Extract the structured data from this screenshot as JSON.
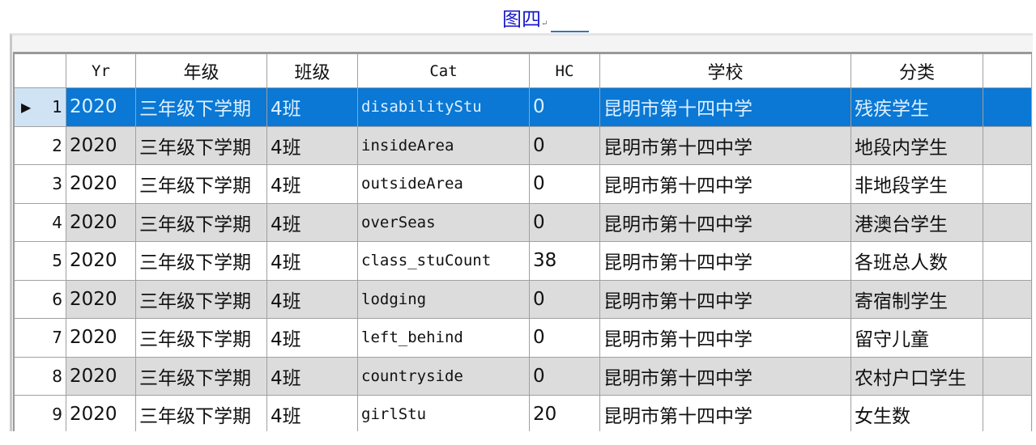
{
  "caption": {
    "text": "图四",
    "mark": "↵"
  },
  "columns": [
    "",
    "Yr",
    "年级",
    "班级",
    "Cat",
    "HC",
    "学校",
    "分类",
    ""
  ],
  "selected_row": 1,
  "colors": {
    "selection": "#0a78d4",
    "alt_row": "#dcdcdc"
  },
  "rows": [
    {
      "n": "1",
      "yr": "2020",
      "grade": "三年级下学期",
      "cls": "4班",
      "cat": "disabilityStu",
      "hc": "0",
      "school": "昆明市第十四中学",
      "type": "残疾学生"
    },
    {
      "n": "2",
      "yr": "2020",
      "grade": "三年级下学期",
      "cls": "4班",
      "cat": "insideArea",
      "hc": "0",
      "school": "昆明市第十四中学",
      "type": "地段内学生"
    },
    {
      "n": "3",
      "yr": "2020",
      "grade": "三年级下学期",
      "cls": "4班",
      "cat": "outsideArea",
      "hc": "0",
      "school": "昆明市第十四中学",
      "type": "非地段学生"
    },
    {
      "n": "4",
      "yr": "2020",
      "grade": "三年级下学期",
      "cls": "4班",
      "cat": "overSeas",
      "hc": "0",
      "school": "昆明市第十四中学",
      "type": "港澳台学生"
    },
    {
      "n": "5",
      "yr": "2020",
      "grade": "三年级下学期",
      "cls": "4班",
      "cat": "class_stuCount",
      "hc": "38",
      "school": "昆明市第十四中学",
      "type": "各班总人数"
    },
    {
      "n": "6",
      "yr": "2020",
      "grade": "三年级下学期",
      "cls": "4班",
      "cat": "lodging",
      "hc": "0",
      "school": "昆明市第十四中学",
      "type": "寄宿制学生"
    },
    {
      "n": "7",
      "yr": "2020",
      "grade": "三年级下学期",
      "cls": "4班",
      "cat": "left_behind",
      "hc": "0",
      "school": "昆明市第十四中学",
      "type": "留守儿童"
    },
    {
      "n": "8",
      "yr": "2020",
      "grade": "三年级下学期",
      "cls": "4班",
      "cat": "countryside",
      "hc": "0",
      "school": "昆明市第十四中学",
      "type": "农村户口学生"
    },
    {
      "n": "9",
      "yr": "2020",
      "grade": "三年级下学期",
      "cls": "4班",
      "cat": "girlStu",
      "hc": "20",
      "school": "昆明市第十四中学",
      "type": "女生数"
    }
  ]
}
